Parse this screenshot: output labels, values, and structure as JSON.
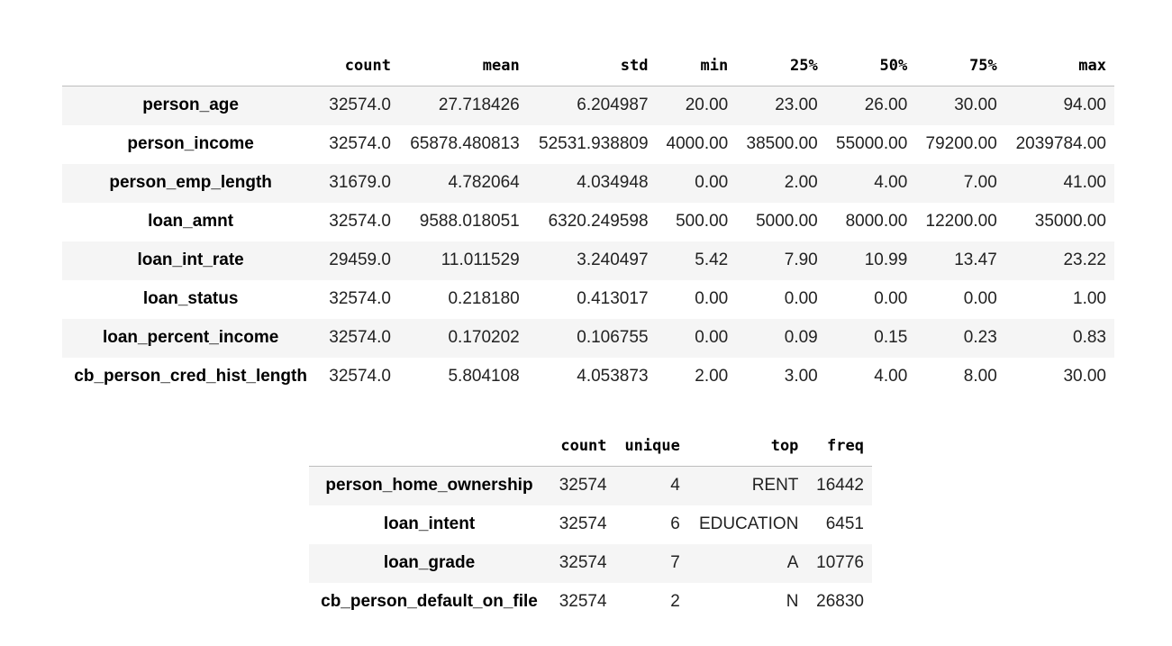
{
  "numeric_summary": {
    "columns": [
      "count",
      "mean",
      "std",
      "min",
      "25%",
      "50%",
      "75%",
      "max"
    ],
    "rows": [
      {
        "name": "person_age",
        "values": [
          "32574.0",
          "27.718426",
          "6.204987",
          "20.00",
          "23.00",
          "26.00",
          "30.00",
          "94.00"
        ]
      },
      {
        "name": "person_income",
        "values": [
          "32574.0",
          "65878.480813",
          "52531.938809",
          "4000.00",
          "38500.00",
          "55000.00",
          "79200.00",
          "2039784.00"
        ]
      },
      {
        "name": "person_emp_length",
        "values": [
          "31679.0",
          "4.782064",
          "4.034948",
          "0.00",
          "2.00",
          "4.00",
          "7.00",
          "41.00"
        ]
      },
      {
        "name": "loan_amnt",
        "values": [
          "32574.0",
          "9588.018051",
          "6320.249598",
          "500.00",
          "5000.00",
          "8000.00",
          "12200.00",
          "35000.00"
        ]
      },
      {
        "name": "loan_int_rate",
        "values": [
          "29459.0",
          "11.011529",
          "3.240497",
          "5.42",
          "7.90",
          "10.99",
          "13.47",
          "23.22"
        ]
      },
      {
        "name": "loan_status",
        "values": [
          "32574.0",
          "0.218180",
          "0.413017",
          "0.00",
          "0.00",
          "0.00",
          "0.00",
          "1.00"
        ]
      },
      {
        "name": "loan_percent_income",
        "values": [
          "32574.0",
          "0.170202",
          "0.106755",
          "0.00",
          "0.09",
          "0.15",
          "0.23",
          "0.83"
        ]
      },
      {
        "name": "cb_person_cred_hist_length",
        "values": [
          "32574.0",
          "5.804108",
          "4.053873",
          "2.00",
          "3.00",
          "4.00",
          "8.00",
          "30.00"
        ]
      }
    ]
  },
  "categorical_summary": {
    "columns": [
      "count",
      "unique",
      "top",
      "freq"
    ],
    "rows": [
      {
        "name": "person_home_ownership",
        "values": [
          "32574",
          "4",
          "RENT",
          "16442"
        ]
      },
      {
        "name": "loan_intent",
        "values": [
          "32574",
          "6",
          "EDUCATION",
          "6451"
        ]
      },
      {
        "name": "loan_grade",
        "values": [
          "32574",
          "7",
          "A",
          "10776"
        ]
      },
      {
        "name": "cb_person_default_on_file",
        "values": [
          "32574",
          "2",
          "N",
          "26830"
        ]
      }
    ]
  }
}
